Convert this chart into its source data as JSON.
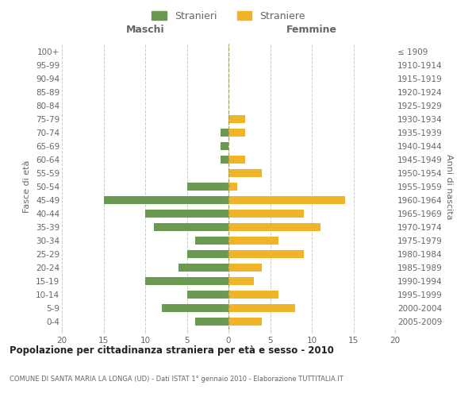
{
  "age_groups": [
    "0-4",
    "5-9",
    "10-14",
    "15-19",
    "20-24",
    "25-29",
    "30-34",
    "35-39",
    "40-44",
    "45-49",
    "50-54",
    "55-59",
    "60-64",
    "65-69",
    "70-74",
    "75-79",
    "80-84",
    "85-89",
    "90-94",
    "95-99",
    "100+"
  ],
  "birth_years": [
    "2005-2009",
    "2000-2004",
    "1995-1999",
    "1990-1994",
    "1985-1989",
    "1980-1984",
    "1975-1979",
    "1970-1974",
    "1965-1969",
    "1960-1964",
    "1955-1959",
    "1950-1954",
    "1945-1949",
    "1940-1944",
    "1935-1939",
    "1930-1934",
    "1925-1929",
    "1920-1924",
    "1915-1919",
    "1910-1914",
    "≤ 1909"
  ],
  "maschi": [
    4,
    8,
    5,
    10,
    6,
    5,
    4,
    9,
    10,
    15,
    5,
    0,
    1,
    1,
    1,
    0,
    0,
    0,
    0,
    0,
    0
  ],
  "femmine": [
    4,
    8,
    6,
    3,
    4,
    9,
    6,
    11,
    9,
    14,
    1,
    4,
    2,
    0,
    2,
    2,
    0,
    0,
    0,
    0,
    0
  ],
  "color_maschi": "#6a9a52",
  "color_femmine": "#f0b429",
  "xlim": 20,
  "title": "Popolazione per cittadinanza straniera per età e sesso - 2010",
  "subtitle": "COMUNE DI SANTA MARIA LA LONGA (UD) - Dati ISTAT 1° gennaio 2010 - Elaborazione TUTTITALIA.IT",
  "ylabel_left": "Fasce di età",
  "ylabel_right": "Anni di nascita",
  "xlabel_maschi": "Maschi",
  "xlabel_femmine": "Femmine",
  "legend_stranieri": "Stranieri",
  "legend_straniere": "Straniere",
  "background_color": "#ffffff",
  "grid_color": "#cccccc",
  "label_color": "#666666"
}
